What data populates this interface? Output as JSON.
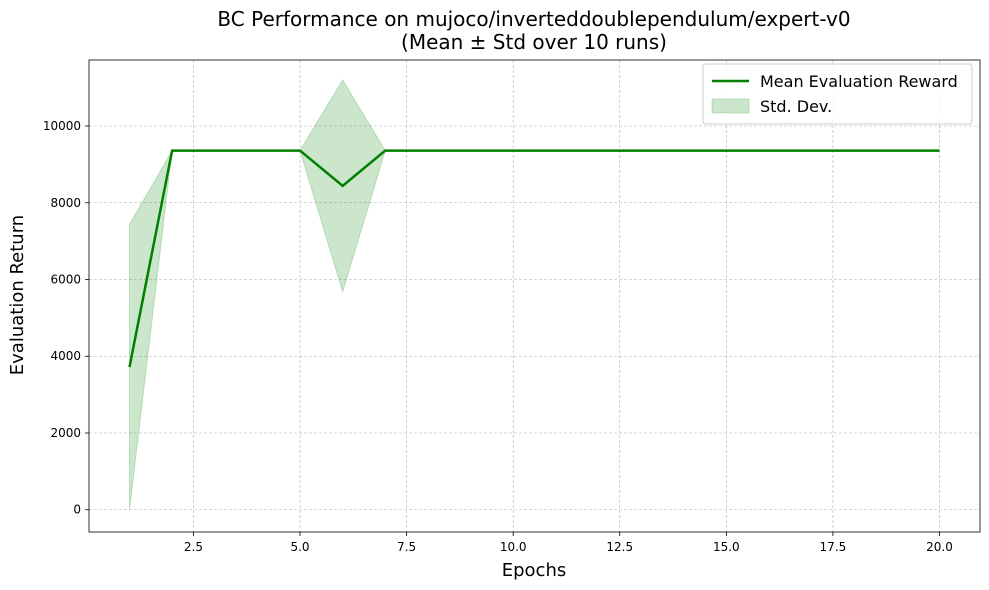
{
  "chart_data": {
    "type": "line",
    "title": "BC Performance on mujoco/inverteddoublependulum/expert-v0",
    "subtitle": "(Mean ± Std over 10 runs)",
    "xlabel": "Epochs",
    "ylabel": "Evaluation Return",
    "xlim": [
      0.05,
      20.95
    ],
    "ylim": [
      -580,
      11720
    ],
    "xticks": [
      2.5,
      5.0,
      7.5,
      10.0,
      12.5,
      15.0,
      17.5,
      20.0
    ],
    "xtick_labels": [
      "2.5",
      "5.0",
      "7.5",
      "10.0",
      "12.5",
      "15.0",
      "17.5",
      "20.0"
    ],
    "yticks": [
      0,
      2000,
      4000,
      6000,
      8000,
      10000
    ],
    "ytick_labels": [
      "0",
      "2000",
      "4000",
      "6000",
      "8000",
      "10000"
    ],
    "grid": true,
    "legend_position": "top-right",
    "x": [
      1,
      2,
      3,
      4,
      5,
      6,
      7,
      8,
      9,
      10,
      11,
      12,
      13,
      14,
      15,
      16,
      17,
      18,
      19,
      20
    ],
    "series": [
      {
        "name": "Mean Evaluation Reward",
        "color": "#008000",
        "values": [
          3720,
          9360,
          9360,
          9360,
          9360,
          8440,
          9360,
          9360,
          9360,
          9360,
          9360,
          9360,
          9360,
          9360,
          9360,
          9360,
          9360,
          9360,
          9360,
          9360
        ]
      }
    ],
    "band": {
      "name": "Std. Dev.",
      "color": "#008000",
      "opacity": 0.2,
      "lower": [
        0,
        9360,
        9360,
        9360,
        9360,
        5680,
        9360,
        9360,
        9360,
        9360,
        9360,
        9360,
        9360,
        9360,
        9360,
        9360,
        9360,
        9360,
        9360,
        9360
      ],
      "upper": [
        7440,
        9360,
        9360,
        9360,
        9360,
        11200,
        9360,
        9360,
        9360,
        9360,
        9360,
        9360,
        9360,
        9360,
        9360,
        9360,
        9360,
        9360,
        9360,
        9360
      ]
    }
  }
}
